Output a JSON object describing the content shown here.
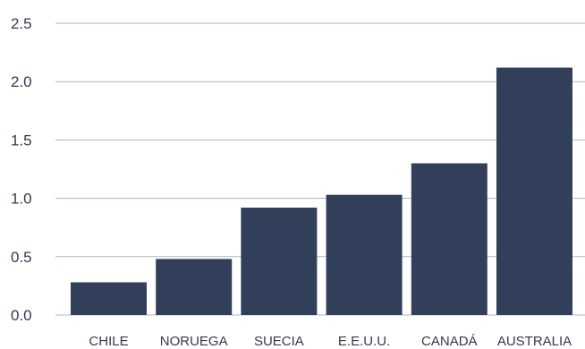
{
  "chart_data": {
    "type": "bar",
    "categories": [
      "CHILE",
      "NORUEGA",
      "SUECIA",
      "E.E.U.U.",
      "CANADÁ",
      "AUSTRALIA"
    ],
    "values": [
      0.28,
      0.48,
      0.92,
      1.03,
      1.3,
      2.12
    ],
    "yticks": [
      "0.0",
      "0.5",
      "1.0",
      "1.5",
      "2.0",
      "2.5"
    ],
    "ylim": [
      0,
      2.5
    ],
    "grid": true,
    "bar_color": "#323f5a",
    "grid_color": "#aab8cc"
  }
}
